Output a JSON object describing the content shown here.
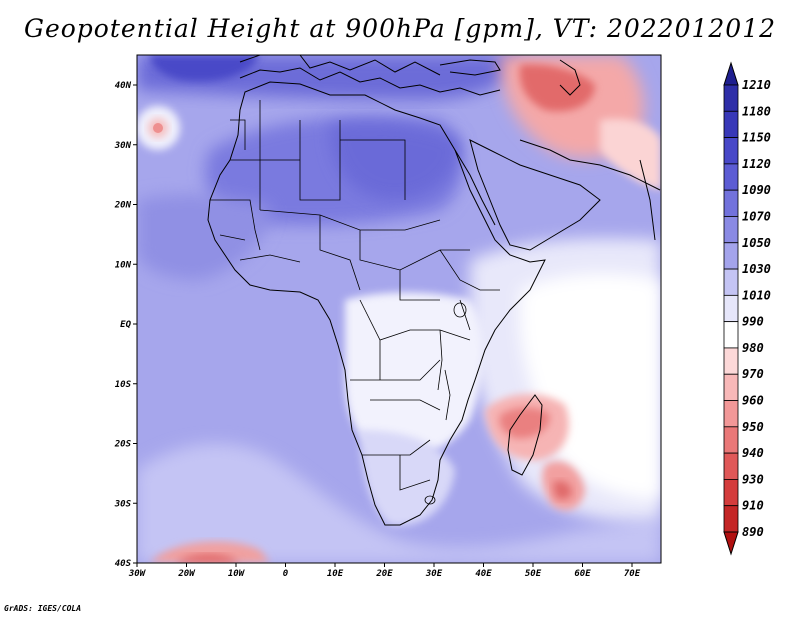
{
  "title": "Geopotential Height at 900hPa [gpm], VT: 2022012012",
  "credit": "GrADS: IGES/COLA",
  "map": {
    "lon_ticks": [
      "30W",
      "20W",
      "10W",
      "0",
      "10E",
      "20E",
      "30E",
      "40E",
      "50E",
      "60E",
      "70E"
    ],
    "lat_ticks": [
      "40N",
      "30N",
      "20N",
      "10N",
      "EQ",
      "10S",
      "20S",
      "30S",
      "40S"
    ]
  },
  "colorbar": {
    "labels": [
      "1210",
      "1180",
      "1150",
      "1120",
      "1090",
      "1070",
      "1050",
      "1030",
      "1010",
      "990",
      "980",
      "970",
      "960",
      "950",
      "940",
      "930",
      "910",
      "890"
    ],
    "colors": [
      "#1f1f8f",
      "#2e2ea8",
      "#3838b8",
      "#4848c8",
      "#5c5cd4",
      "#7272dc",
      "#8a8ae4",
      "#a4a4ec",
      "#c4c4f4",
      "#e6e6fa",
      "#ffffff",
      "#fcd8d8",
      "#f8b8b8",
      "#f29898",
      "#ea7878",
      "#e05858",
      "#d43c3c",
      "#c42626",
      "#b01010"
    ],
    "arrow_top_color": "#1f1f8f",
    "arrow_bottom_color": "#b01010"
  }
}
